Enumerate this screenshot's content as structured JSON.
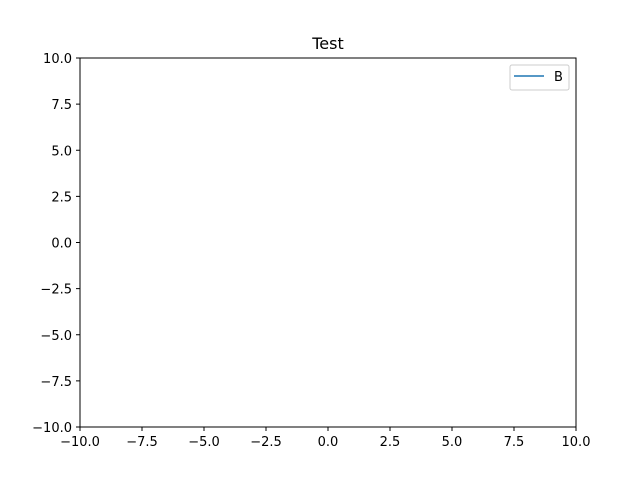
{
  "chart_data": {
    "type": "line",
    "title": "Test",
    "xlabel": "",
    "ylabel": "",
    "xlim": [
      -10,
      10
    ],
    "ylim": [
      -10,
      10
    ],
    "x_ticks": [
      -10,
      -7.5,
      -5,
      -2.5,
      0,
      2.5,
      5,
      7.5,
      10
    ],
    "y_ticks": [
      -10,
      -7.5,
      -5,
      -2.5,
      0,
      2.5,
      5,
      7.5,
      10
    ],
    "x_tick_labels": [
      "−10.0",
      "−7.5",
      "−5.0",
      "−2.5",
      "0.0",
      "2.5",
      "5.0",
      "7.5",
      "10.0"
    ],
    "y_tick_labels": [
      "−10.0",
      "−7.5",
      "−5.0",
      "−2.5",
      "0.0",
      "2.5",
      "5.0",
      "7.5",
      "10.0"
    ],
    "grid": false,
    "legend": {
      "placement": "top-right"
    },
    "series": [
      {
        "name": "B",
        "color": "#1f77b4",
        "x": [],
        "y": []
      }
    ]
  }
}
